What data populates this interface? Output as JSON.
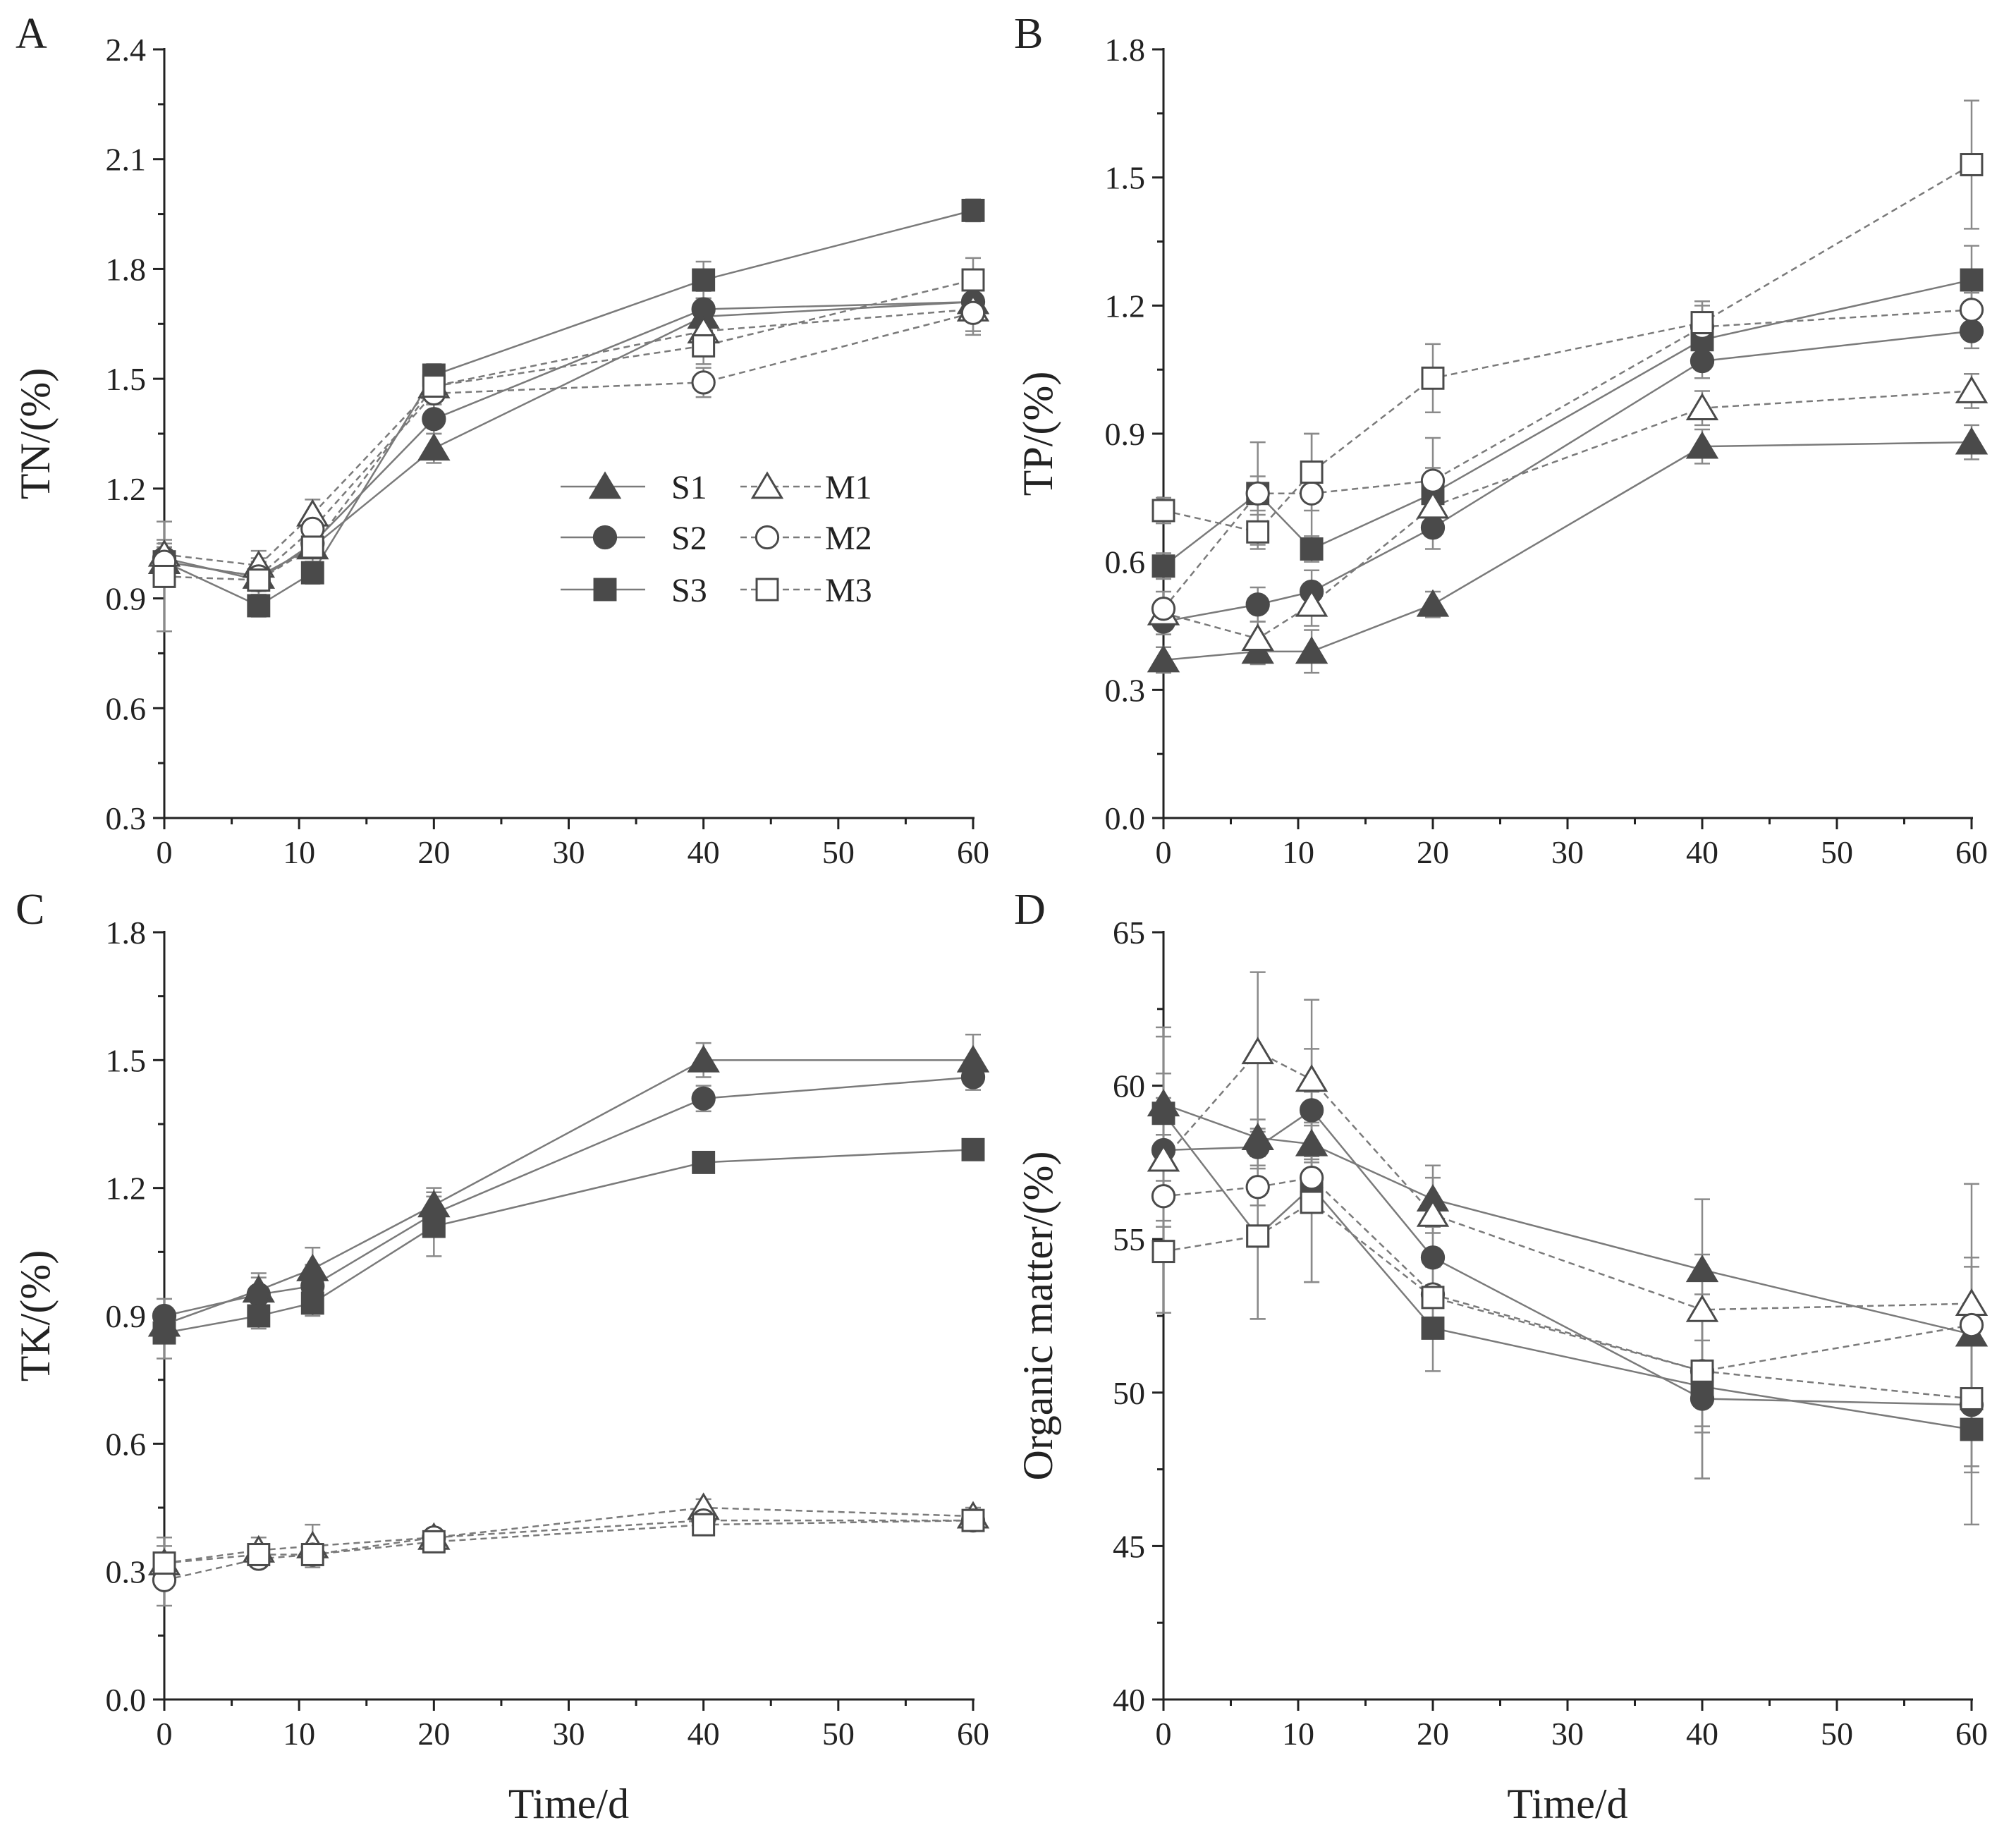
{
  "chart_data": [
    {
      "panel": "A",
      "type": "line",
      "ylabel": "TN/(%)",
      "xlabel": "",
      "xlim": [
        0,
        60
      ],
      "xticks": [
        0,
        10,
        20,
        30,
        40,
        50,
        60
      ],
      "ylim": [
        0.3,
        2.4
      ],
      "yticks": [
        "0.3",
        "0.6",
        "0.9",
        "1.2",
        "1.5",
        "1.8",
        "2.1",
        "2.4"
      ],
      "legend": {
        "position": "center-right"
      },
      "x": [
        0,
        7,
        11,
        20,
        40,
        60
      ],
      "series": [
        {
          "name": "S1",
          "values": [
            1.0,
            0.96,
            1.04,
            1.31,
            1.67,
            1.71
          ],
          "errors": [
            0.04,
            0.04,
            0.04,
            0.04,
            0.05,
            0.04
          ]
        },
        {
          "name": "S2",
          "values": [
            1.01,
            0.95,
            1.05,
            1.39,
            1.69,
            1.71
          ],
          "errors": [
            0.04,
            0.04,
            0.05,
            0.04,
            0.05,
            0.04
          ]
        },
        {
          "name": "S3",
          "values": [
            1.0,
            0.88,
            0.97,
            1.51,
            1.77,
            1.96
          ],
          "errors": [
            0.04,
            0.03,
            0.03,
            0.03,
            0.05,
            0.03
          ]
        },
        {
          "name": "M1",
          "values": [
            1.02,
            0.99,
            1.13,
            1.48,
            1.63,
            1.69
          ],
          "errors": [
            0.04,
            0.04,
            0.04,
            0.04,
            0.04,
            0.07
          ]
        },
        {
          "name": "M2",
          "values": [
            1.0,
            0.96,
            1.09,
            1.46,
            1.49,
            1.68
          ],
          "errors": [
            0.04,
            0.05,
            0.04,
            0.05,
            0.04,
            0.05
          ]
        },
        {
          "name": "M3",
          "values": [
            0.96,
            0.95,
            1.04,
            1.48,
            1.59,
            1.77
          ],
          "errors": [
            0.15,
            0.05,
            0.04,
            0.05,
            0.05,
            0.06
          ]
        }
      ]
    },
    {
      "panel": "B",
      "type": "line",
      "ylabel": "TP/(%)",
      "xlabel": "",
      "xlim": [
        0,
        60
      ],
      "xticks": [
        0,
        10,
        20,
        30,
        40,
        50,
        60
      ],
      "ylim": [
        0.0,
        1.8
      ],
      "yticks": [
        "0.0",
        "0.3",
        "0.6",
        "0.9",
        "1.2",
        "1.5",
        "1.8"
      ],
      "x": [
        0,
        7,
        11,
        20,
        40,
        60
      ],
      "series": [
        {
          "name": "S1",
          "values": [
            0.37,
            0.39,
            0.39,
            0.5,
            0.87,
            0.88
          ],
          "errors": [
            0.03,
            0.03,
            0.05,
            0.03,
            0.04,
            0.04
          ]
        },
        {
          "name": "S2",
          "values": [
            0.46,
            0.5,
            0.53,
            0.68,
            1.07,
            1.14
          ],
          "errors": [
            0.03,
            0.04,
            0.05,
            0.05,
            0.04,
            0.04
          ]
        },
        {
          "name": "S3",
          "values": [
            0.59,
            0.76,
            0.63,
            0.76,
            1.12,
            1.26
          ],
          "errors": [
            0.03,
            0.04,
            0.03,
            0.06,
            0.04,
            0.08
          ]
        },
        {
          "name": "M1",
          "values": [
            0.48,
            0.42,
            0.5,
            0.73,
            0.96,
            1.0
          ],
          "errors": [
            0.03,
            0.04,
            0.05,
            0.04,
            0.04,
            0.04
          ]
        },
        {
          "name": "M2",
          "values": [
            0.49,
            0.76,
            0.76,
            0.79,
            1.15,
            1.19
          ],
          "errors": [
            0.04,
            0.12,
            0.14,
            0.1,
            0.05,
            0.04
          ]
        },
        {
          "name": "M3",
          "values": [
            0.72,
            0.67,
            0.81,
            1.03,
            1.16,
            1.53
          ],
          "errors": [
            0.03,
            0.04,
            0.09,
            0.08,
            0.05,
            0.15
          ]
        }
      ]
    },
    {
      "panel": "C",
      "type": "line",
      "ylabel": "TK/(%)",
      "xlabel": "Time/d",
      "xlim": [
        0,
        60
      ],
      "xticks": [
        0,
        10,
        20,
        30,
        40,
        50,
        60
      ],
      "ylim": [
        0.0,
        1.8
      ],
      "yticks": [
        "0.0",
        "0.3",
        "0.6",
        "0.9",
        "1.2",
        "1.5",
        "1.8"
      ],
      "x": [
        0,
        7,
        11,
        20,
        40,
        60
      ],
      "series": [
        {
          "name": "S1",
          "values": [
            0.88,
            0.96,
            1.01,
            1.16,
            1.5,
            1.5
          ],
          "errors": [
            0.04,
            0.04,
            0.05,
            0.04,
            0.04,
            0.06
          ]
        },
        {
          "name": "S2",
          "values": [
            0.9,
            0.95,
            0.97,
            1.14,
            1.41,
            1.46
          ],
          "errors": [
            0.04,
            0.04,
            0.05,
            0.05,
            0.03,
            0.03
          ]
        },
        {
          "name": "S3",
          "values": [
            0.86,
            0.9,
            0.93,
            1.11,
            1.26,
            1.29
          ],
          "errors": [
            0.06,
            0.03,
            0.03,
            0.07,
            0.02,
            0.02
          ]
        },
        {
          "name": "M1",
          "values": [
            0.32,
            0.35,
            0.36,
            0.38,
            0.45,
            0.43
          ],
          "errors": [
            0.06,
            0.03,
            0.05,
            0.02,
            0.02,
            0.02
          ]
        },
        {
          "name": "M2",
          "values": [
            0.28,
            0.33,
            0.34,
            0.38,
            0.42,
            0.42
          ],
          "errors": [
            0.06,
            0.02,
            0.02,
            0.02,
            0.02,
            0.02
          ]
        },
        {
          "name": "M3",
          "values": [
            0.32,
            0.34,
            0.34,
            0.37,
            0.41,
            0.42
          ],
          "errors": [
            0.04,
            0.02,
            0.02,
            0.02,
            0.02,
            0.02
          ]
        }
      ]
    },
    {
      "panel": "D",
      "type": "line",
      "ylabel": "Organic matter/(%)",
      "xlabel": "Time/d",
      "xlim": [
        0,
        60
      ],
      "xticks": [
        0,
        10,
        20,
        30,
        40,
        50,
        60
      ],
      "ylim": [
        40,
        65
      ],
      "yticks": [
        "40",
        "45",
        "50",
        "55",
        "60",
        "65"
      ],
      "x": [
        0,
        7,
        11,
        20,
        40,
        60
      ],
      "series": [
        {
          "name": "S1",
          "values": [
            59.4,
            58.3,
            58.1,
            56.3,
            54.0,
            51.9
          ],
          "errors": [
            2.5,
            0.6,
            0.6,
            1.1,
            2.3,
            2.2
          ]
        },
        {
          "name": "S2",
          "values": [
            57.9,
            58.0,
            59.2,
            54.4,
            49.8,
            49.6
          ],
          "errors": [
            2.5,
            0.6,
            2.0,
            1.0,
            2.6,
            2.2
          ]
        },
        {
          "name": "S3",
          "values": [
            59.1,
            55.1,
            56.7,
            52.1,
            50.2,
            48.8
          ],
          "errors": [
            2.5,
            2.7,
            3.1,
            1.4,
            3.0,
            3.1
          ]
        },
        {
          "name": "M1",
          "values": [
            57.6,
            61.1,
            60.2,
            55.8,
            52.7,
            52.9
          ],
          "errors": [
            2.0,
            2.6,
            2.6,
            1.2,
            1.8,
            3.9
          ]
        },
        {
          "name": "M2",
          "values": [
            56.4,
            56.7,
            57.0,
            53.2,
            50.7,
            52.2
          ],
          "errors": [
            2.0,
            0.6,
            0.7,
            1.2,
            1.8,
            2.2
          ]
        },
        {
          "name": "M3",
          "values": [
            54.6,
            55.1,
            56.2,
            53.1,
            50.7,
            49.8
          ],
          "errors": [
            2.0,
            2.7,
            2.6,
            1.0,
            2.0,
            2.2
          ]
        }
      ]
    }
  ],
  "series_styles": {
    "S1": {
      "marker": "triangle",
      "filled": true,
      "dashed": false
    },
    "S2": {
      "marker": "circle",
      "filled": true,
      "dashed": false
    },
    "S3": {
      "marker": "square",
      "filled": true,
      "dashed": false
    },
    "M1": {
      "marker": "triangle",
      "filled": false,
      "dashed": true
    },
    "M2": {
      "marker": "circle",
      "filled": false,
      "dashed": true
    },
    "M3": {
      "marker": "square",
      "filled": false,
      "dashed": true
    }
  },
  "colors": {
    "marker_fill": "#4a4a4a",
    "marker_stroke": "#4a4a4a",
    "line": "#7a7a7a",
    "error_bar": "#8a8a8a",
    "axis": "#222222",
    "background": "#ffffff"
  }
}
